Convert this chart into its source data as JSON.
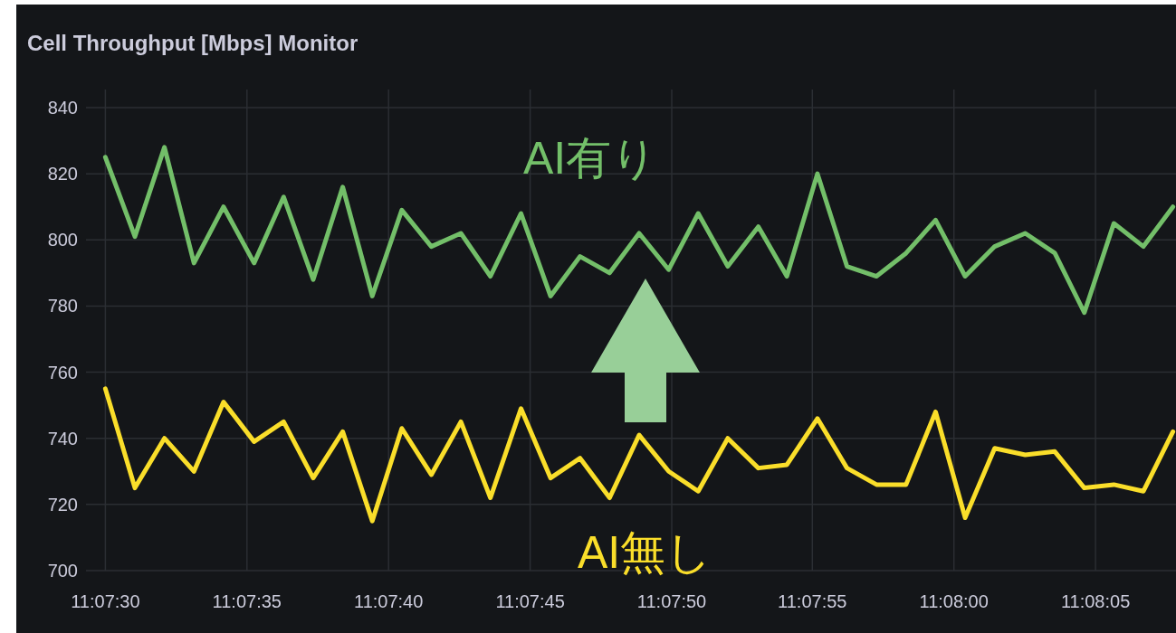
{
  "chart_data": {
    "type": "line",
    "title": "Cell Throughput [Mbps] Monitor",
    "x": [
      11.125,
      11.12529,
      11.12558,
      11.12587,
      11.12616,
      11.12646,
      11.12675,
      11.12704,
      11.12733,
      11.12762,
      11.12791,
      11.1282,
      11.12849,
      11.12878,
      11.12908,
      11.12937,
      11.12966,
      11.12995,
      11.13024,
      11.13053,
      11.13082,
      11.13111,
      11.13141,
      11.13169,
      11.13199,
      11.13228,
      11.13257,
      11.13286,
      11.13315,
      11.13344,
      11.13373,
      11.13403,
      11.13432,
      11.13461,
      11.1349,
      11.13519,
      11.13548
    ],
    "series": [
      {
        "name": "AI有り",
        "color": "#73bf69",
        "values": [
          825,
          801,
          828,
          793,
          810,
          793,
          813,
          788,
          816,
          783,
          809,
          798,
          802,
          789,
          808,
          783,
          795,
          790,
          802,
          791,
          808,
          792,
          804,
          789,
          820,
          792,
          789,
          796,
          806,
          789,
          798,
          802,
          796,
          778,
          805,
          798,
          810
        ]
      },
      {
        "name": "AI無し",
        "color": "#fade2a",
        "values": [
          755,
          725,
          740,
          730,
          751,
          739,
          745,
          728,
          742,
          715,
          743,
          729,
          745,
          722,
          749,
          728,
          734,
          722,
          741,
          730,
          724,
          740,
          731,
          732,
          746,
          731,
          726,
          726,
          748,
          716,
          737,
          735,
          736,
          725,
          726,
          724,
          742
        ]
      }
    ],
    "xlim": [
      11.12481,
      11.13551
    ],
    "xticks": [
      {
        "value": 11.125,
        "label": "11:07:30"
      },
      {
        "value": 11.12639,
        "label": "11:07:35"
      },
      {
        "value": 11.12778,
        "label": "11:07:40"
      },
      {
        "value": 11.12917,
        "label": "11:07:45"
      },
      {
        "value": 11.13056,
        "label": "11:07:50"
      },
      {
        "value": 11.13194,
        "label": "11:07:55"
      },
      {
        "value": 11.13333,
        "label": "11:08:00"
      },
      {
        "value": 11.13472,
        "label": "11:08:05"
      }
    ],
    "ylim": [
      700,
      840
    ],
    "yticks": [
      700,
      720,
      740,
      760,
      780,
      800,
      820,
      840
    ],
    "grid": true
  }
}
